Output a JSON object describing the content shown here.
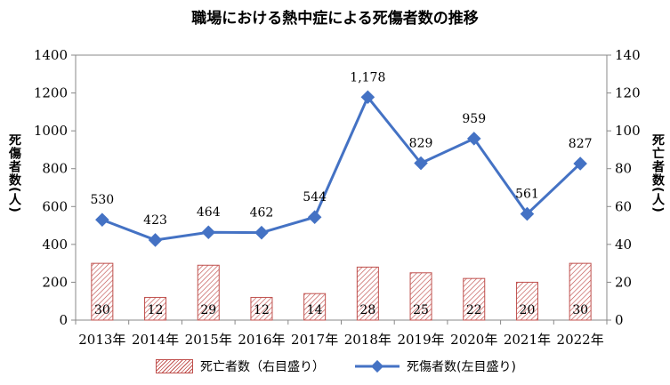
{
  "chart_data": {
    "type": "bar+line",
    "title": "職場における熱中症による死傷者数の推移",
    "categories": [
      "2013年",
      "2014年",
      "2015年",
      "2016年",
      "2017年",
      "2018年",
      "2019年",
      "2020年",
      "2021年",
      "2022年"
    ],
    "series": [
      {
        "name": "死亡者数（右目盛り）",
        "type": "bar",
        "axis": "right",
        "values": [
          30,
          12,
          29,
          12,
          14,
          28,
          25,
          22,
          20,
          30
        ],
        "color": "#c0504d"
      },
      {
        "name": "死傷者数(左目盛り)",
        "type": "line",
        "axis": "left",
        "values": [
          530,
          423,
          464,
          462,
          544,
          1178,
          829,
          959,
          561,
          827
        ],
        "labels": [
          "530",
          "423",
          "464",
          "462",
          "544",
          "1,178",
          "829",
          "959",
          "561",
          "827"
        ],
        "color": "#4472c4"
      }
    ],
    "ylabel_left": "死傷者数(人)",
    "ylabel_right": "死亡者数(人)",
    "ylim_left": [
      0,
      1400
    ],
    "ylim_right": [
      0,
      140
    ],
    "yticks_left": [
      "0",
      "200",
      "400",
      "600",
      "800",
      "1000",
      "1200",
      "1400"
    ],
    "yticks_right": [
      "0",
      "20",
      "40",
      "60",
      "80",
      "100",
      "120",
      "140"
    ],
    "grid": false,
    "legend_position": "bottom"
  }
}
